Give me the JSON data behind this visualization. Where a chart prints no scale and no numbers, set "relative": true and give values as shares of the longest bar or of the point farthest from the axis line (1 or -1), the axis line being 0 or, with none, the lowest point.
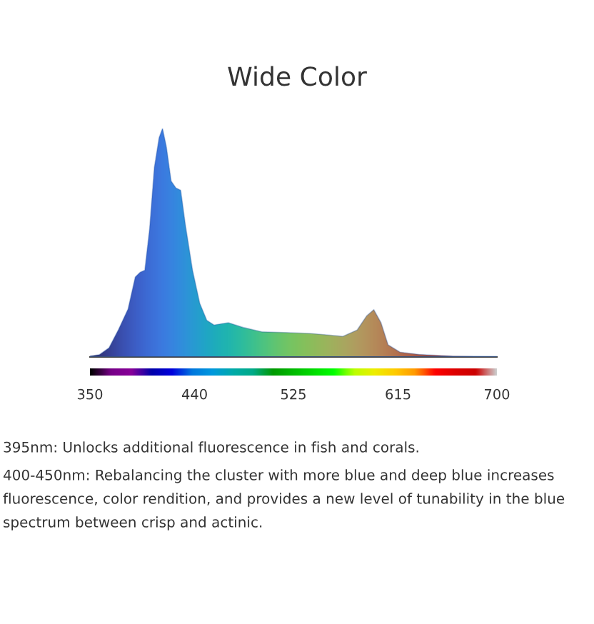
{
  "chart_data": {
    "type": "area",
    "title": "Wide Color",
    "relative": true,
    "xlim": [
      350,
      700
    ],
    "xticks": [
      350,
      440,
      525,
      615,
      700
    ],
    "series": [
      {
        "color": "#2b5aa6",
        "x": [
          350,
          358.2,
          366.4,
          374.6,
          382.8,
          389,
          393.1,
          397.2,
          401.3,
          405.4,
          409.5,
          412.4,
          415.7,
          419.8,
          423.9,
          428,
          432,
          438.2,
          444.4,
          450.5,
          456.7,
          469,
          481.3,
          497.7,
          518.2,
          538.7,
          555.1,
          567.4,
          579.8,
          588,
          594.1,
          600.3,
          606.4,
          616.7,
          633.1,
          661.9,
          700
        ],
        "values": [
          0.004,
          0.01,
          0.04,
          0.12,
          0.21,
          0.35,
          0.37,
          0.38,
          0.56,
          0.83,
          0.96,
          1.0,
          0.92,
          0.77,
          0.74,
          0.73,
          0.58,
          0.38,
          0.235,
          0.16,
          0.14,
          0.15,
          0.13,
          0.11,
          0.107,
          0.103,
          0.096,
          0.09,
          0.118,
          0.18,
          0.207,
          0.15,
          0.053,
          0.021,
          0.011,
          0.004,
          0.002
        ]
      }
    ],
    "annotations": [
      "395nm: Unlocks additional fluorescence in fish and corals.",
      "400-450nm: Rebalancing the cluster with more blue and deep blue increases fluorescence, color rendition, and provides a new level of tunability in the blue spectrum between crisp and actinic."
    ]
  }
}
